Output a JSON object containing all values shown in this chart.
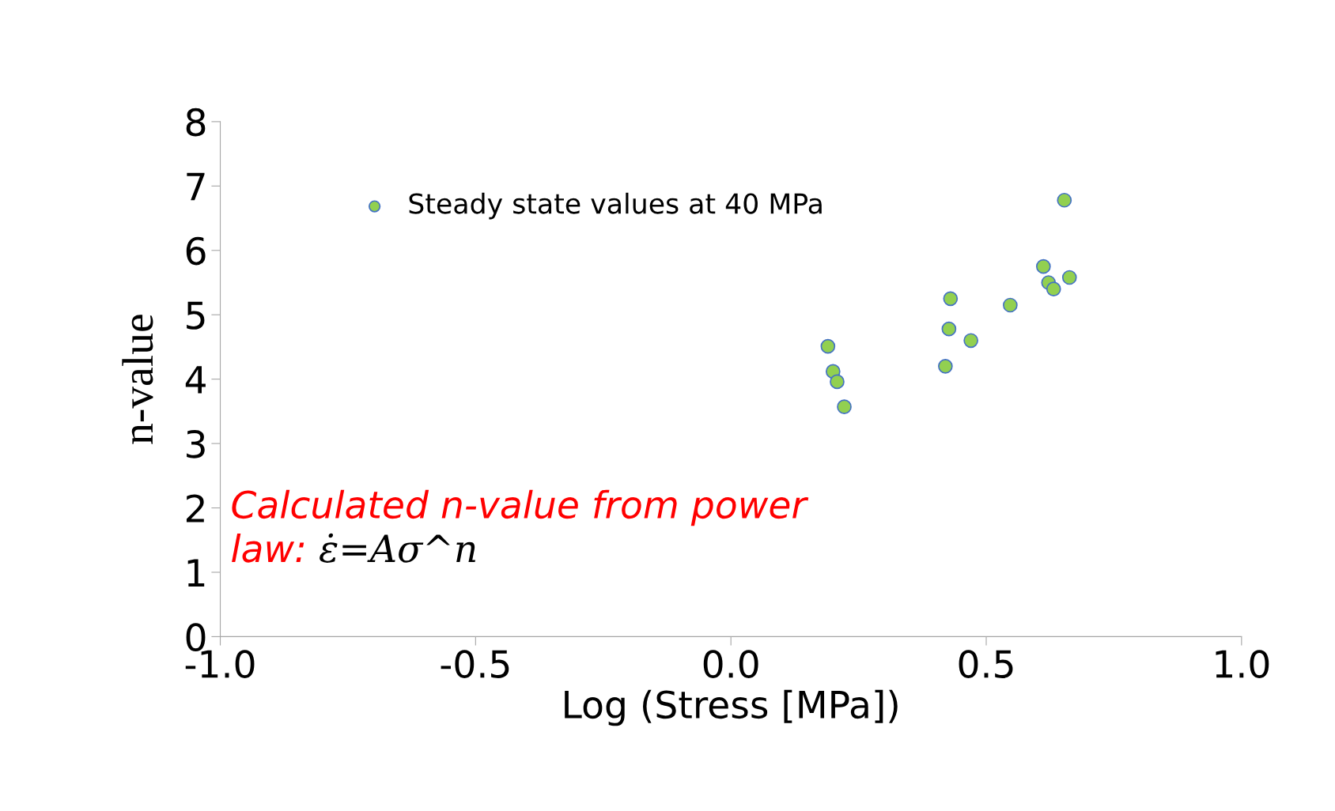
{
  "chart_data": {
    "type": "scatter",
    "xlabel": "Log (Stress [MPa])",
    "ylabel": "n-value",
    "xlim": [
      -1.0,
      1.0
    ],
    "xticks": [
      {
        "value": -1.0,
        "label": "-1.0"
      },
      {
        "value": -0.5,
        "label": "-0.5"
      },
      {
        "value": 0.0,
        "label": "0.0"
      },
      {
        "value": 0.5,
        "label": "0.5"
      },
      {
        "value": 1.0,
        "label": "1.0"
      }
    ],
    "ylim": [
      0,
      8
    ],
    "yticks": [
      0,
      1,
      2,
      3,
      4,
      5,
      6,
      7,
      8
    ],
    "series": [
      {
        "name": "Steady state values at 40 MPa",
        "color": "#92d050",
        "x": [
          0.19,
          0.2,
          0.208,
          0.222,
          0.42,
          0.427,
          0.43,
          0.47,
          0.547,
          0.612,
          0.622,
          0.632,
          0.653,
          0.663
        ],
        "values": [
          4.51,
          4.12,
          3.96,
          3.57,
          4.2,
          4.78,
          5.25,
          4.6,
          5.15,
          5.75,
          5.5,
          5.4,
          6.78,
          5.58
        ]
      }
    ],
    "marker": "circle",
    "legend": "top left",
    "grid": false,
    "annotations": [
      "Calculated n-value from power law:",
      "ε̇=Aσ^n"
    ]
  }
}
